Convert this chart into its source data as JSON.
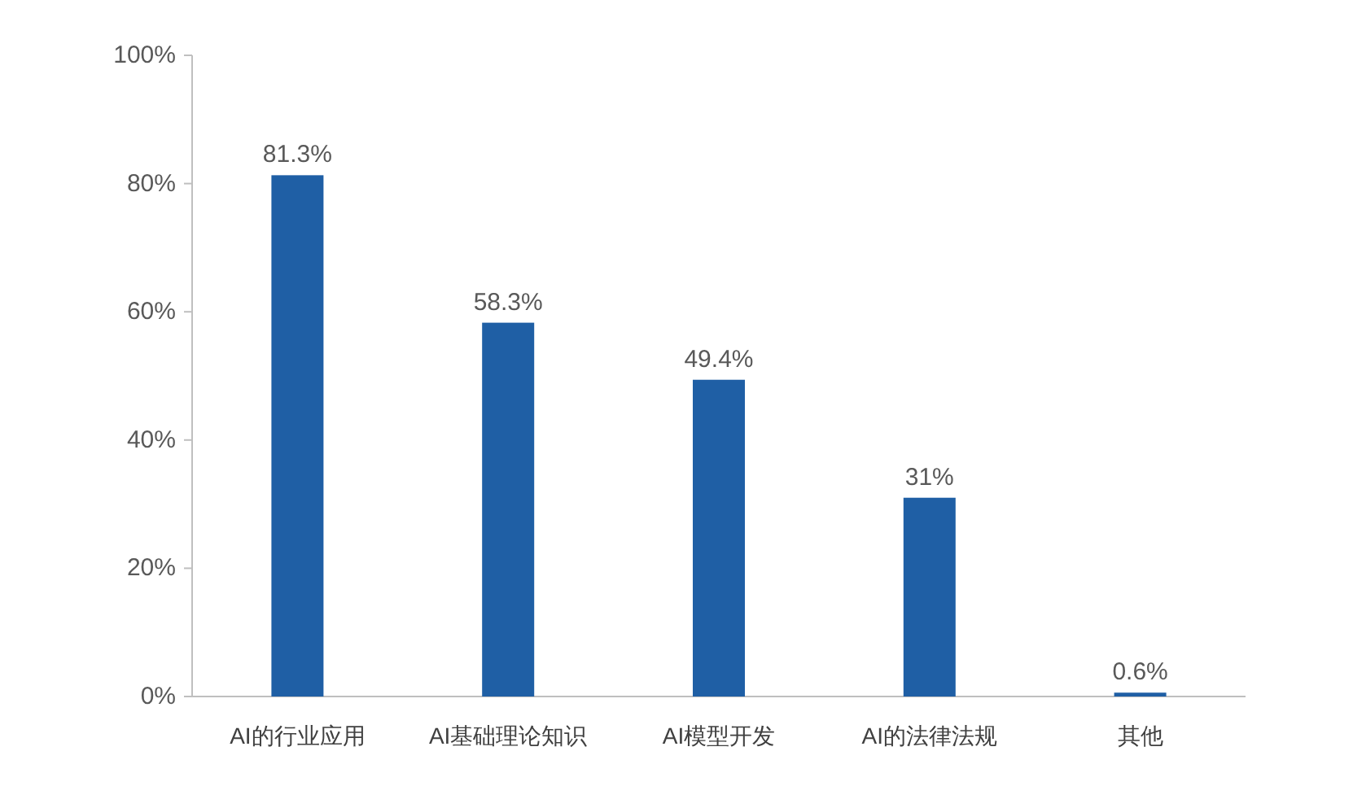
{
  "chart_data": {
    "type": "bar",
    "categories": [
      "AI的行业应用",
      "AI基础理论知识",
      "AI模型开发",
      "AI的法律法规",
      "其他"
    ],
    "values": [
      81.3,
      58.3,
      49.4,
      31,
      0.6
    ],
    "value_labels": [
      "81.3%",
      "58.3%",
      "49.4%",
      "31%",
      "0.6%"
    ],
    "color": "#1f5fa5",
    "ylim": [
      0,
      100
    ],
    "yticks": [
      {
        "value": 0,
        "label": "0%"
      },
      {
        "value": 20,
        "label": "20%"
      },
      {
        "value": 40,
        "label": "40%"
      },
      {
        "value": 60,
        "label": "60%"
      },
      {
        "value": 80,
        "label": "80%"
      },
      {
        "value": 100,
        "label": "100%"
      }
    ],
    "grid": false
  }
}
